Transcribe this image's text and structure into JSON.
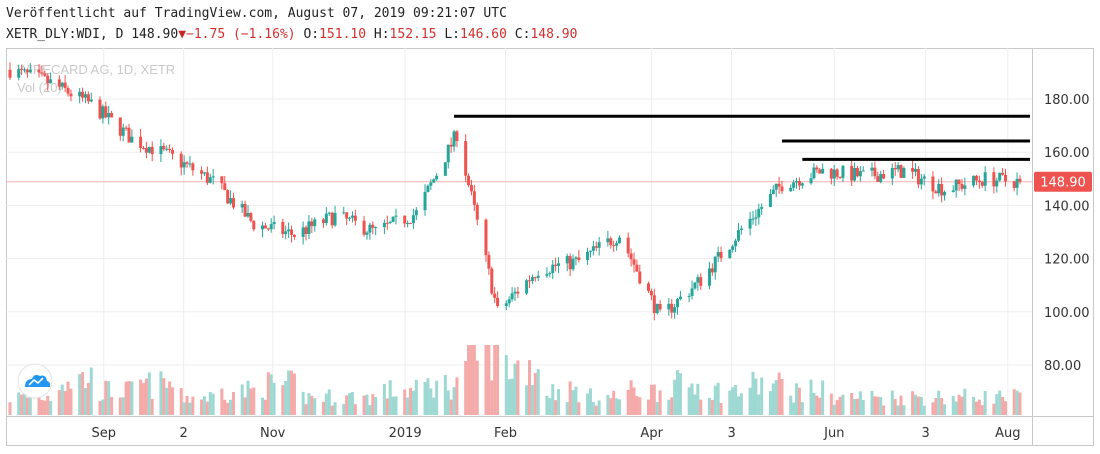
{
  "header": {
    "published": "Veröffentlicht auf TradingView.com, August 07, 2019 09:21:07 UTC",
    "symbol": "XETR_DLY:WDI, D",
    "last": "148.90",
    "change": "−1.75 (−1.16%)",
    "open_label": "O:",
    "open": "151.10",
    "high_label": "H:",
    "high": "152.15",
    "low_label": "L:",
    "low": "146.60",
    "close_label": "C:",
    "close": "148.90"
  },
  "watermark": {
    "line1": "WIRECARD AG, 1D, XETR",
    "line2": "Vol (20)"
  },
  "colors": {
    "up": "#26a69a",
    "down": "#ef5350",
    "vol_up": "#9ed8d2",
    "vol_down": "#f4aaa8",
    "price_line": "#f8b0b0",
    "badge": "#ef5350",
    "grid": "#eeeeee"
  },
  "logo_icon": "tradingview-cloud-icon",
  "chart_data": {
    "type": "candlestick",
    "y_axis": {
      "ticks": [
        "180.00",
        "160.00",
        "140.00",
        "120.00",
        "100.00",
        "80.00"
      ],
      "range": [
        60,
        197
      ]
    },
    "x_axis": {
      "ticks": [
        "Sep",
        "2",
        "Nov",
        "2019",
        "Feb",
        "Apr",
        "3",
        "Jun",
        "3",
        "Aug"
      ]
    },
    "last_price_badge": "148.90",
    "last_price": 148.9,
    "horizontal_lines": [
      {
        "level": 173.5,
        "from": "2019-01-24",
        "to": "2019-08-07"
      },
      {
        "level": 164.2,
        "from": "2019-05-17",
        "to": "2019-08-07"
      },
      {
        "level": 157.3,
        "from": "2019-05-24",
        "to": "2019-08-07"
      }
    ],
    "dates": [
      "2018-08-24",
      "2018-09-07",
      "2018-09-21",
      "2018-10-05",
      "2018-10-19",
      "2018-11-02",
      "2018-11-16",
      "2018-11-30",
      "2018-12-14",
      "2018-12-28",
      "2019-01-11",
      "2019-01-25",
      "2019-02-08",
      "2019-02-22",
      "2019-03-08",
      "2019-03-22",
      "2019-04-05",
      "2019-04-19",
      "2019-05-03",
      "2019-05-17",
      "2019-05-31",
      "2019-06-14",
      "2019-06-28",
      "2019-07-12",
      "2019-07-26",
      "2019-08-07"
    ],
    "closes": [
      191,
      186,
      178,
      165,
      158,
      149,
      133,
      129,
      136,
      130,
      137,
      167,
      100,
      116,
      119,
      129,
      98,
      112,
      131,
      148,
      153,
      151,
      153,
      146,
      150,
      148.9
    ],
    "volumes": [
      3,
      6,
      4,
      5,
      3,
      4,
      5,
      3,
      3,
      4,
      5,
      11,
      8,
      4,
      3,
      4,
      5,
      4,
      5,
      4,
      3,
      3,
      3,
      3,
      3,
      3
    ]
  }
}
